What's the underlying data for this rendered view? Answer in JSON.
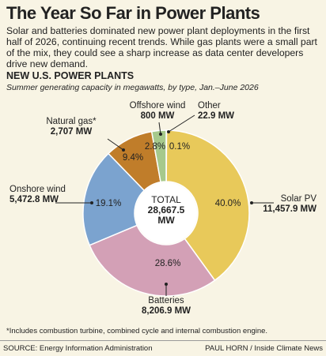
{
  "title": "The Year So Far in Power Plants",
  "intro": "Solar and batteries dominated new power plant deployments in the first half of 2026, continuing recent trends. While gas plants were a small part of the mix, they could see a sharp increase as data center developers drive new demand.",
  "chart_data": {
    "type": "donut",
    "title": "NEW U.S. POWER PLANTS",
    "subtitle": "Summer generating capacity in megawatts, by type, Jan.–June 2026",
    "categories": [
      "Other",
      "Solar PV",
      "Batteries",
      "Onshore wind",
      "Natural gas*",
      "Offshore wind"
    ],
    "values": [
      22.9,
      11457.9,
      8206.9,
      5472.8,
      2707,
      800
    ],
    "value_labels": [
      "22.9 MW",
      "11,457.9 MW",
      "8,206.9 MW",
      "5,472.8 MW",
      "2,707 MW",
      "800 MW"
    ],
    "share_labels": [
      "0.1%",
      "40.0%",
      "28.6%",
      "19.1%",
      "9.4%",
      "2.8%"
    ],
    "colors": [
      "#3f8f6e",
      "#e8c95a",
      "#d3a0b6",
      "#7ba3cf",
      "#c07d2a",
      "#a6c98c"
    ],
    "total_title": "TOTAL",
    "total": {
      "value": 28667.5,
      "label": "28,667.5 MW"
    }
  },
  "footnote": "*Includes combustion turbine, combined cycle and internal combustion engine.",
  "source": "SOURCE: Energy Information Administration",
  "credit": "PAUL HORN / Inside Climate News"
}
